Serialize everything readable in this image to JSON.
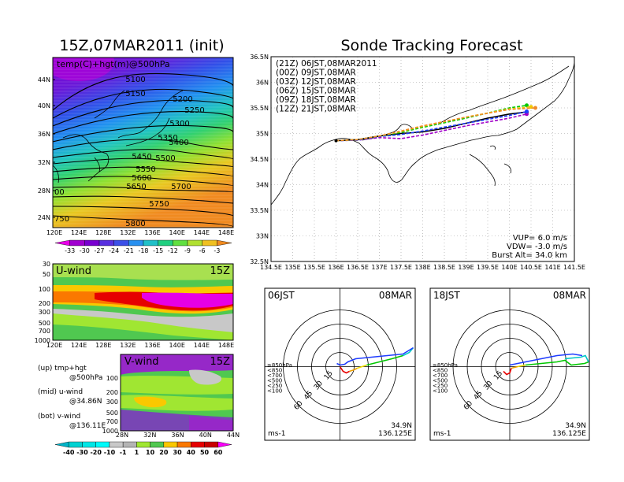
{
  "page": {
    "left_title": "15Z,07MAR2011 (init)",
    "right_title": "Sonde Tracking Forecast"
  },
  "map_panel": {
    "label": "temp(C)+hgt(m)@500hPa",
    "ylabels": [
      "44N",
      "40N",
      "36N",
      "32N",
      "28N",
      "24N"
    ],
    "xlabels": [
      "120E",
      "124E",
      "128E",
      "132E",
      "136E",
      "140E",
      "144E",
      "148E"
    ],
    "edge_labels": [
      "00",
      "750"
    ],
    "contours": [
      {
        "value": "5100"
      },
      {
        "value": "5150"
      },
      {
        "value": "5200"
      },
      {
        "value": "5250"
      },
      {
        "value": "5300"
      },
      {
        "value": "5350"
      },
      {
        "value": "5400"
      },
      {
        "value": "5450"
      },
      {
        "value": "5500"
      },
      {
        "value": "5550"
      },
      {
        "value": "5600"
      },
      {
        "value": "5650"
      },
      {
        "value": "5700"
      },
      {
        "value": "5750"
      },
      {
        "value": "5800"
      }
    ],
    "colorbar": {
      "labels": [
        "-33",
        "-30",
        "-27",
        "-24",
        "-21",
        "-18",
        "-15",
        "-12",
        "-9",
        "-6",
        "-3"
      ],
      "colors": [
        "#e800e8",
        "#a000d0",
        "#7800d0",
        "#5830e0",
        "#3c50e8",
        "#2890f0",
        "#20c0c8",
        "#20d080",
        "#60e040",
        "#b0e030",
        "#f0c020",
        "#f08a20"
      ]
    }
  },
  "u_panel": {
    "label": "U-wind",
    "time": "15Z",
    "ylabels": [
      "30",
      "50",
      "100",
      "200",
      "300",
      "500",
      "700",
      "1000"
    ],
    "xlabels": [
      "120E",
      "124E",
      "128E",
      "132E",
      "136E",
      "140E",
      "144E",
      "148E"
    ]
  },
  "v_panel": {
    "label": "V-wind",
    "time": "15Z",
    "ylabels": [
      "100",
      "200",
      "300",
      "500",
      "700",
      "1000"
    ],
    "xlabels": [
      "28N",
      "32N",
      "36N",
      "40N",
      "44N"
    ]
  },
  "legend_notes": [
    {
      "a": "(up) tmp+hgt",
      "b": "@500hPa"
    },
    {
      "a": "(mid) u-wind",
      "b": "@34.86N"
    },
    {
      "a": "(bot) v-wind",
      "b": "@136.11E"
    }
  ],
  "wind_colorbar": {
    "labels": [
      "-40",
      "-30",
      "-20",
      "-10",
      "-1",
      "1",
      "10",
      "20",
      "30",
      "40",
      "50",
      "60"
    ],
    "colors": [
      "#00b4c8",
      "#00d2d2",
      "#00e6e6",
      "#00fafa",
      "#c8c8c8",
      "#b4b4b4",
      "#a0e632",
      "#50c850",
      "#fac800",
      "#fa7800",
      "#e60000",
      "#c80000",
      "#fa00fa"
    ]
  },
  "track_map": {
    "ylabels": [
      "36.5N",
      "36N",
      "35.5N",
      "35N",
      "34.5N",
      "34N",
      "33.5N",
      "33N",
      "32.5N"
    ],
    "xlabels": [
      "134.5E",
      "135E",
      "135.5E",
      "136E",
      "136.5E",
      "137E",
      "137.5E",
      "138E",
      "138.5E",
      "139E",
      "139.5E",
      "140E",
      "140.5E",
      "141E",
      "141.5E"
    ],
    "legend": [
      {
        "text": "(21Z)  06JST,08MAR2011",
        "color": "#000000"
      },
      {
        "text": "(00Z)  09JST,08MAR",
        "color": "#a000c8"
      },
      {
        "text": "(03Z)  12JST,08MAR",
        "color": "#1e3cff"
      },
      {
        "text": "(06Z)  15JST,08MAR",
        "color": "#00c800"
      },
      {
        "text": "(09Z)  18JST,08MAR",
        "color": "#f0c800"
      },
      {
        "text": "(12Z)  21JST,08MAR",
        "color": "#f08c28"
      }
    ],
    "params": [
      "VUP= 6.0 m/s",
      "VDW= -3.0 m/s",
      "Burst Alt= 34.0 km"
    ]
  },
  "hodo_left": {
    "time": "06JST",
    "date": "08MAR",
    "rings": [
      "15",
      "30",
      "45",
      "60"
    ],
    "levels": [
      {
        "text": "≥850hPa",
        "color": "#e60000"
      },
      {
        "text": "<850",
        "color": "#f0a000"
      },
      {
        "text": "<700",
        "color": "#f0dc00"
      },
      {
        "text": "<500",
        "color": "#00c800"
      },
      {
        "text": "<250",
        "color": "#00c8c8"
      },
      {
        "text": "<100",
        "color": "#1e3cff"
      }
    ],
    "unit": "ms-1",
    "lat": "34.9N",
    "lon": "136.125E"
  },
  "hodo_right": {
    "time": "18JST",
    "date": "08MAR",
    "rings": [
      "15",
      "30",
      "45",
      "60"
    ],
    "levels": [
      {
        "text": "≥850hPa",
        "color": "#e60000"
      },
      {
        "text": "<850",
        "color": "#f0a000"
      },
      {
        "text": "<700",
        "color": "#f0dc00"
      },
      {
        "text": "<500",
        "color": "#00c800"
      },
      {
        "text": "<250",
        "color": "#00c8c8"
      },
      {
        "text": "<100",
        "color": "#1e3cff"
      }
    ],
    "unit": "ms-1",
    "lat": "34.9N",
    "lon": "136.125E"
  },
  "chart_data": [
    {
      "type": "heatmap",
      "title": "15Z,07MAR2011 (init)",
      "subtitle": "temp(C)+hgt(m)@500hPa",
      "xlim": [
        120,
        150
      ],
      "ylim": [
        22,
        48
      ],
      "contour_levels": [
        5100,
        5150,
        5200,
        5250,
        5300,
        5350,
        5400,
        5450,
        5500,
        5550,
        5600,
        5650,
        5700,
        5750,
        5800
      ],
      "temp_colorbar": [
        -33,
        -30,
        -27,
        -24,
        -21,
        -18,
        -15,
        -12,
        -9,
        -6,
        -3
      ]
    },
    {
      "type": "heatmap",
      "title": "U-wind",
      "x": "120E-148E",
      "y_pressure_hPa": [
        30,
        50,
        100,
        200,
        300,
        500,
        700,
        1000
      ],
      "note": "jet core > 50 m/s near 200-300 hPa, 130E-148E"
    },
    {
      "type": "heatmap",
      "title": "V-wind",
      "x": "28N-44N",
      "y_pressure_hPa": [
        100,
        200,
        300,
        500,
        700,
        1000
      ]
    },
    {
      "type": "line",
      "title": "Sonde Tracking Forecast",
      "xlim": [
        134.5,
        141.5
      ],
      "ylim": [
        32.5,
        36.5
      ],
      "series": [
        {
          "name": "(21Z) 06JST,08MAR2011",
          "x": [
            136.0,
            136.5,
            137.0,
            137.5,
            138.0,
            138.5,
            139.0,
            139.5,
            140.0,
            140.4
          ],
          "y": [
            34.86,
            34.88,
            34.95,
            35.0,
            35.03,
            35.1,
            35.2,
            35.3,
            35.38,
            35.42
          ]
        },
        {
          "name": "(00Z) 09JST,08MAR",
          "x": [
            136.0,
            136.5,
            137.0,
            137.5,
            138.0,
            139.0,
            140.0,
            140.4
          ],
          "y": [
            34.86,
            34.87,
            34.92,
            34.9,
            34.97,
            35.15,
            35.3,
            35.38
          ]
        },
        {
          "name": "(03Z) 12JST,08MAR",
          "x": [
            136.0,
            136.5,
            137.0,
            137.5,
            138.0,
            139.0,
            140.0,
            140.4
          ],
          "y": [
            34.86,
            34.87,
            34.94,
            34.98,
            35.05,
            35.2,
            35.35,
            35.43
          ]
        },
        {
          "name": "(06Z) 15JST,08MAR",
          "x": [
            136.0,
            136.5,
            137.0,
            137.5,
            138.0,
            139.0,
            140.0,
            140.4
          ],
          "y": [
            34.86,
            34.88,
            34.95,
            35.02,
            35.12,
            35.3,
            35.5,
            35.55
          ]
        },
        {
          "name": "(09Z) 18JST,08MAR",
          "x": [
            136.0,
            136.5,
            137.0,
            137.5,
            138.0,
            139.0,
            140.0,
            140.5
          ],
          "y": [
            34.86,
            34.88,
            34.95,
            35.04,
            35.14,
            35.32,
            35.48,
            35.52
          ]
        },
        {
          "name": "(12Z) 21JST,08MAR",
          "x": [
            136.0,
            136.5,
            137.0,
            137.5,
            138.0,
            139.0,
            140.0,
            140.6
          ],
          "y": [
            34.86,
            34.88,
            34.95,
            35.05,
            35.15,
            35.32,
            35.47,
            35.5
          ]
        }
      ],
      "params": {
        "VUP_m_s": 6.0,
        "VDW_m_s": -3.0,
        "burst_alt_km": 34.0
      }
    },
    {
      "type": "scatter",
      "title": "06JST hodograph",
      "rings_m_s": [
        15,
        30,
        45,
        60
      ],
      "location": "34.9N 136.125E"
    },
    {
      "type": "scatter",
      "title": "18JST hodograph",
      "rings_m_s": [
        15,
        30,
        45,
        60
      ],
      "location": "34.9N 136.125E"
    }
  ]
}
